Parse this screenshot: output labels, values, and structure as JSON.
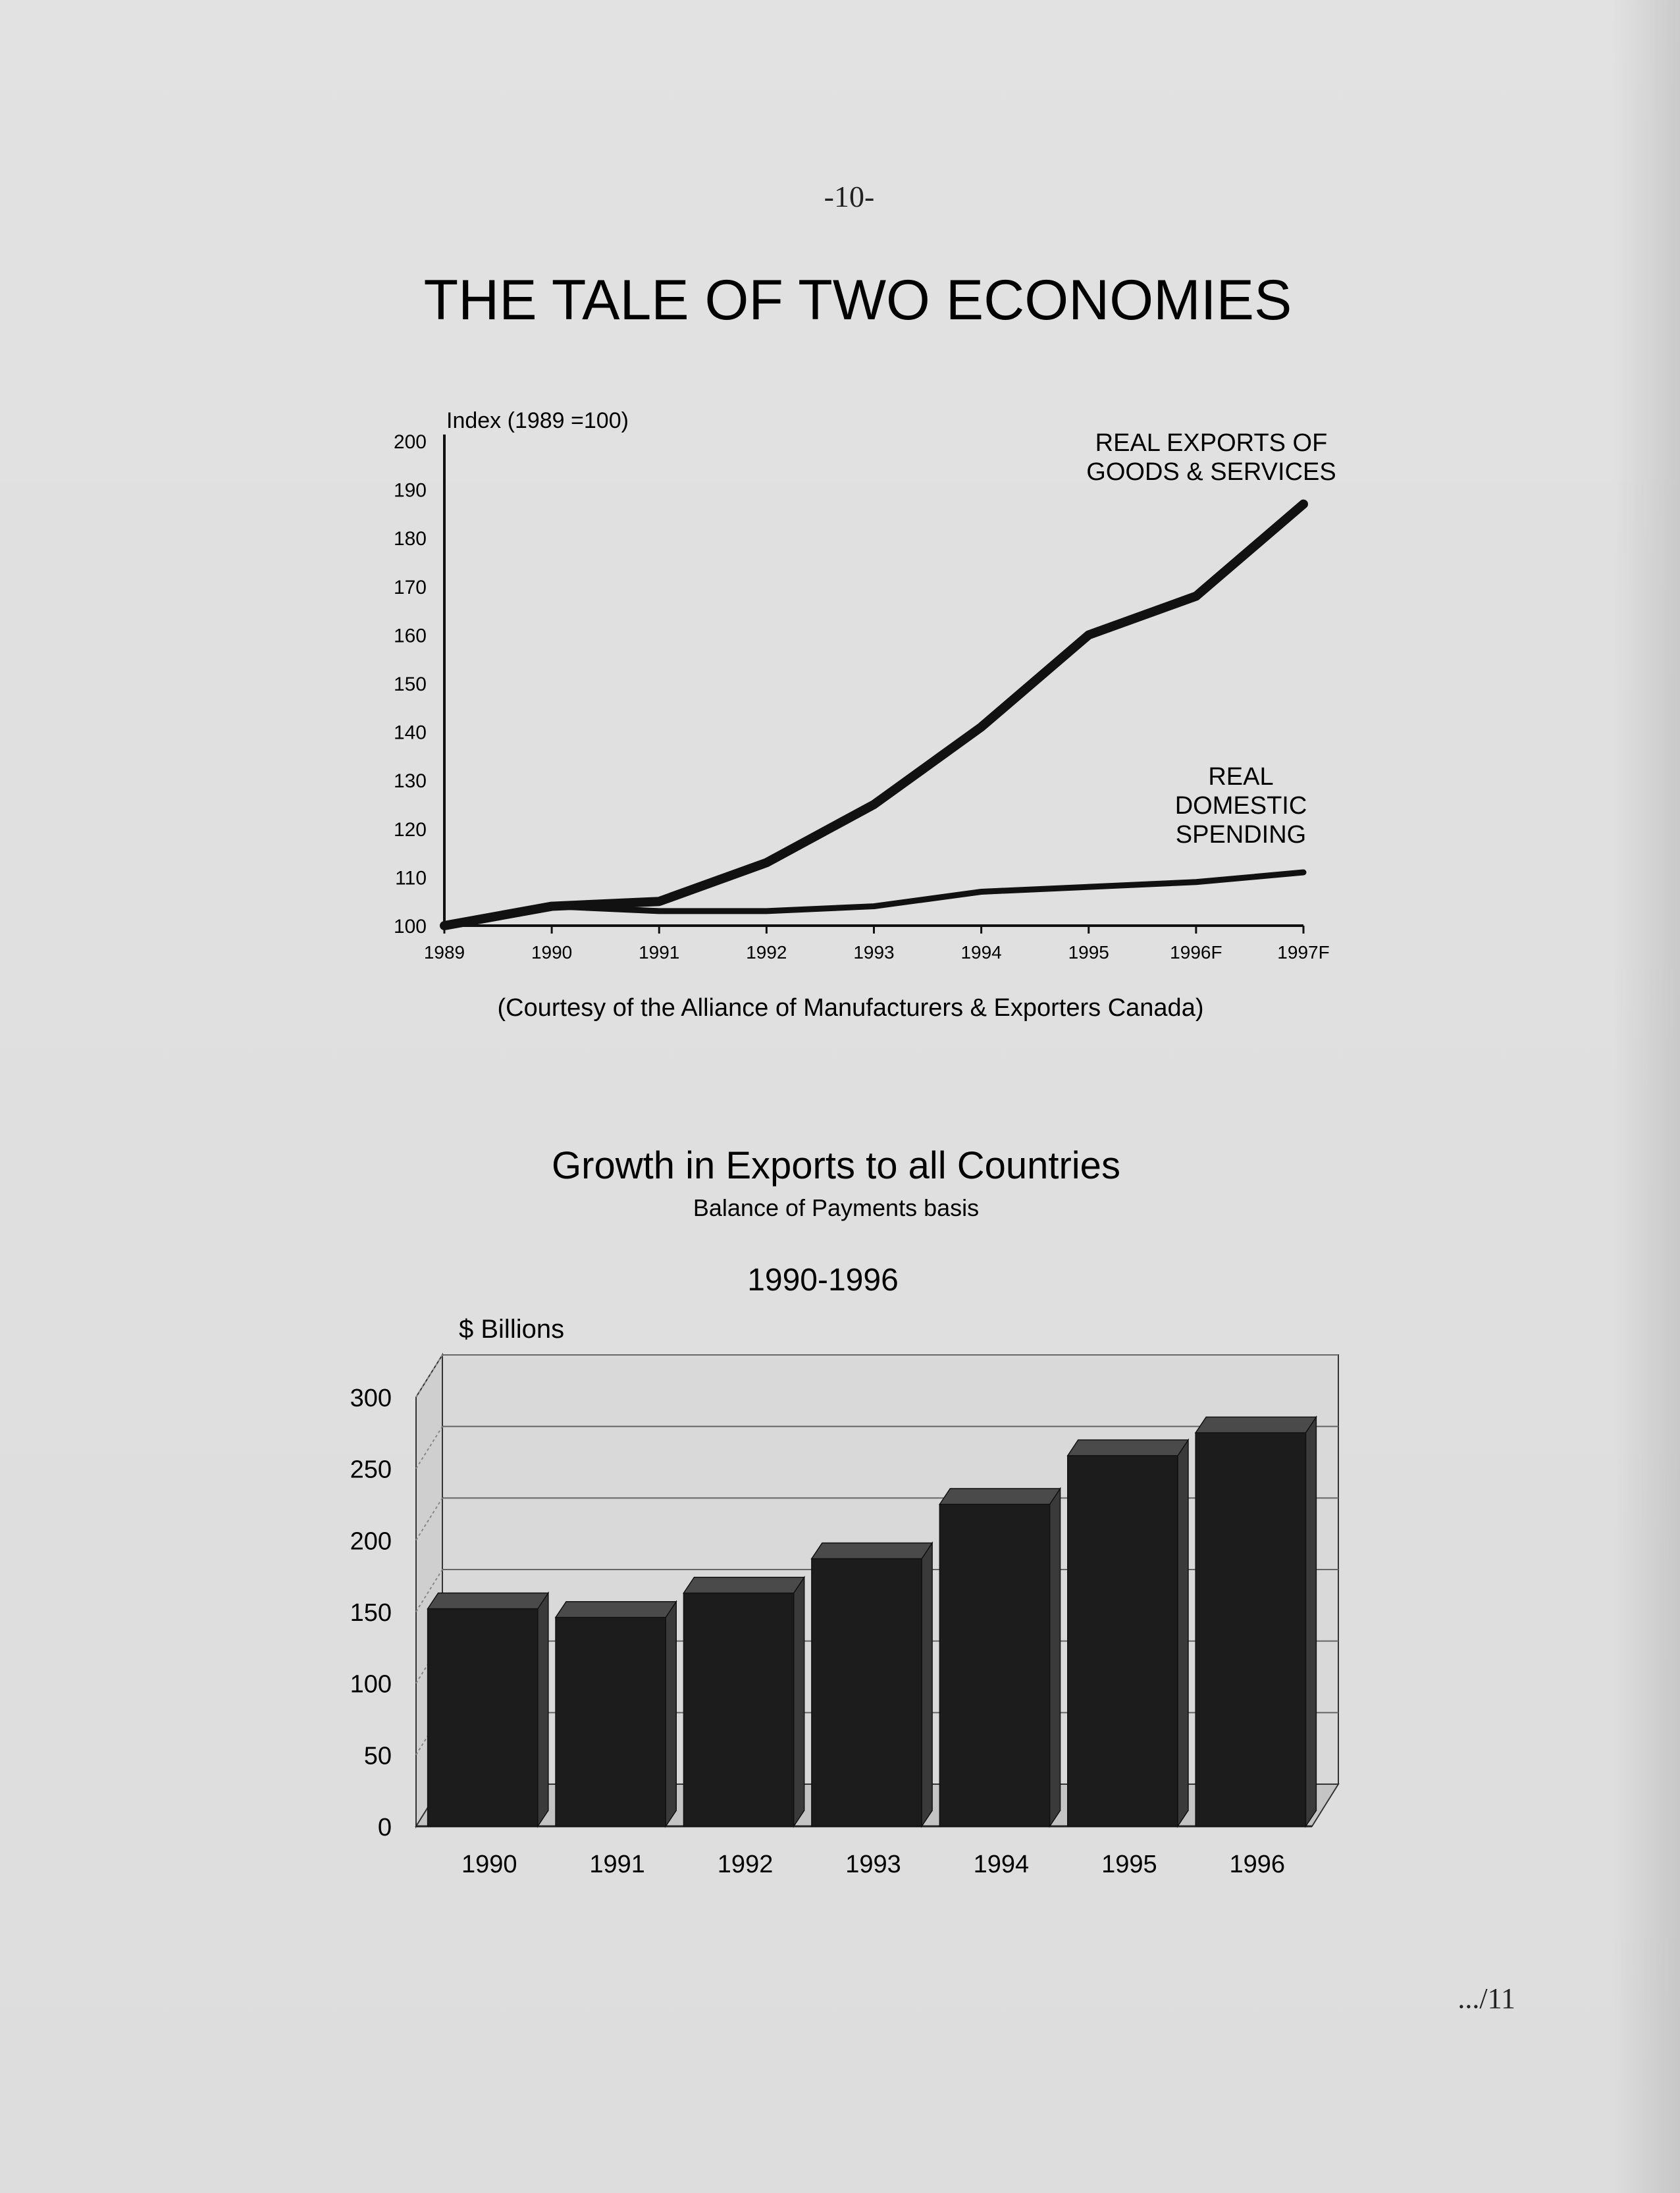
{
  "page": {
    "number": "-10-",
    "footer": ".../11"
  },
  "chart_data": [
    {
      "type": "line",
      "title": "THE TALE OF TWO ECONOMIES",
      "ylabel": "Index (1989 =100)",
      "ylim": [
        100,
        200
      ],
      "yticks": [
        100,
        110,
        120,
        130,
        140,
        150,
        160,
        170,
        180,
        190,
        200
      ],
      "categories": [
        "1989",
        "1990",
        "1991",
        "1992",
        "1993",
        "1994",
        "1995",
        "1996F",
        "1997F"
      ],
      "series": [
        {
          "name": "REAL EXPORTS OF GOODS & SERVICES",
          "name_lines": [
            "REAL EXPORTS OF",
            "GOODS & SERVICES"
          ],
          "values": [
            100,
            104,
            105,
            113,
            125,
            141,
            160,
            168,
            187
          ]
        },
        {
          "name": "REAL DOMESTIC SPENDING",
          "name_lines": [
            "REAL",
            "DOMESTIC",
            "SPENDING"
          ],
          "values": [
            100,
            104,
            103,
            103,
            104,
            107,
            108,
            109,
            111
          ]
        }
      ],
      "source": "(Courtesy of the Alliance of Manufacturers & Exporters Canada)",
      "grid": false
    },
    {
      "type": "bar",
      "title": "Growth in Exports to all Countries",
      "subtitle": "Balance of Payments basis",
      "period": "1990-1996",
      "ylabel": "$ Billions",
      "ylim": [
        0,
        300
      ],
      "yticks": [
        0,
        50,
        100,
        150,
        200,
        250,
        300
      ],
      "categories": [
        "1990",
        "1991",
        "1992",
        "1993",
        "1994",
        "1995",
        "1996"
      ],
      "values": [
        152,
        146,
        163,
        187,
        225,
        259,
        275
      ],
      "grid": true
    }
  ]
}
